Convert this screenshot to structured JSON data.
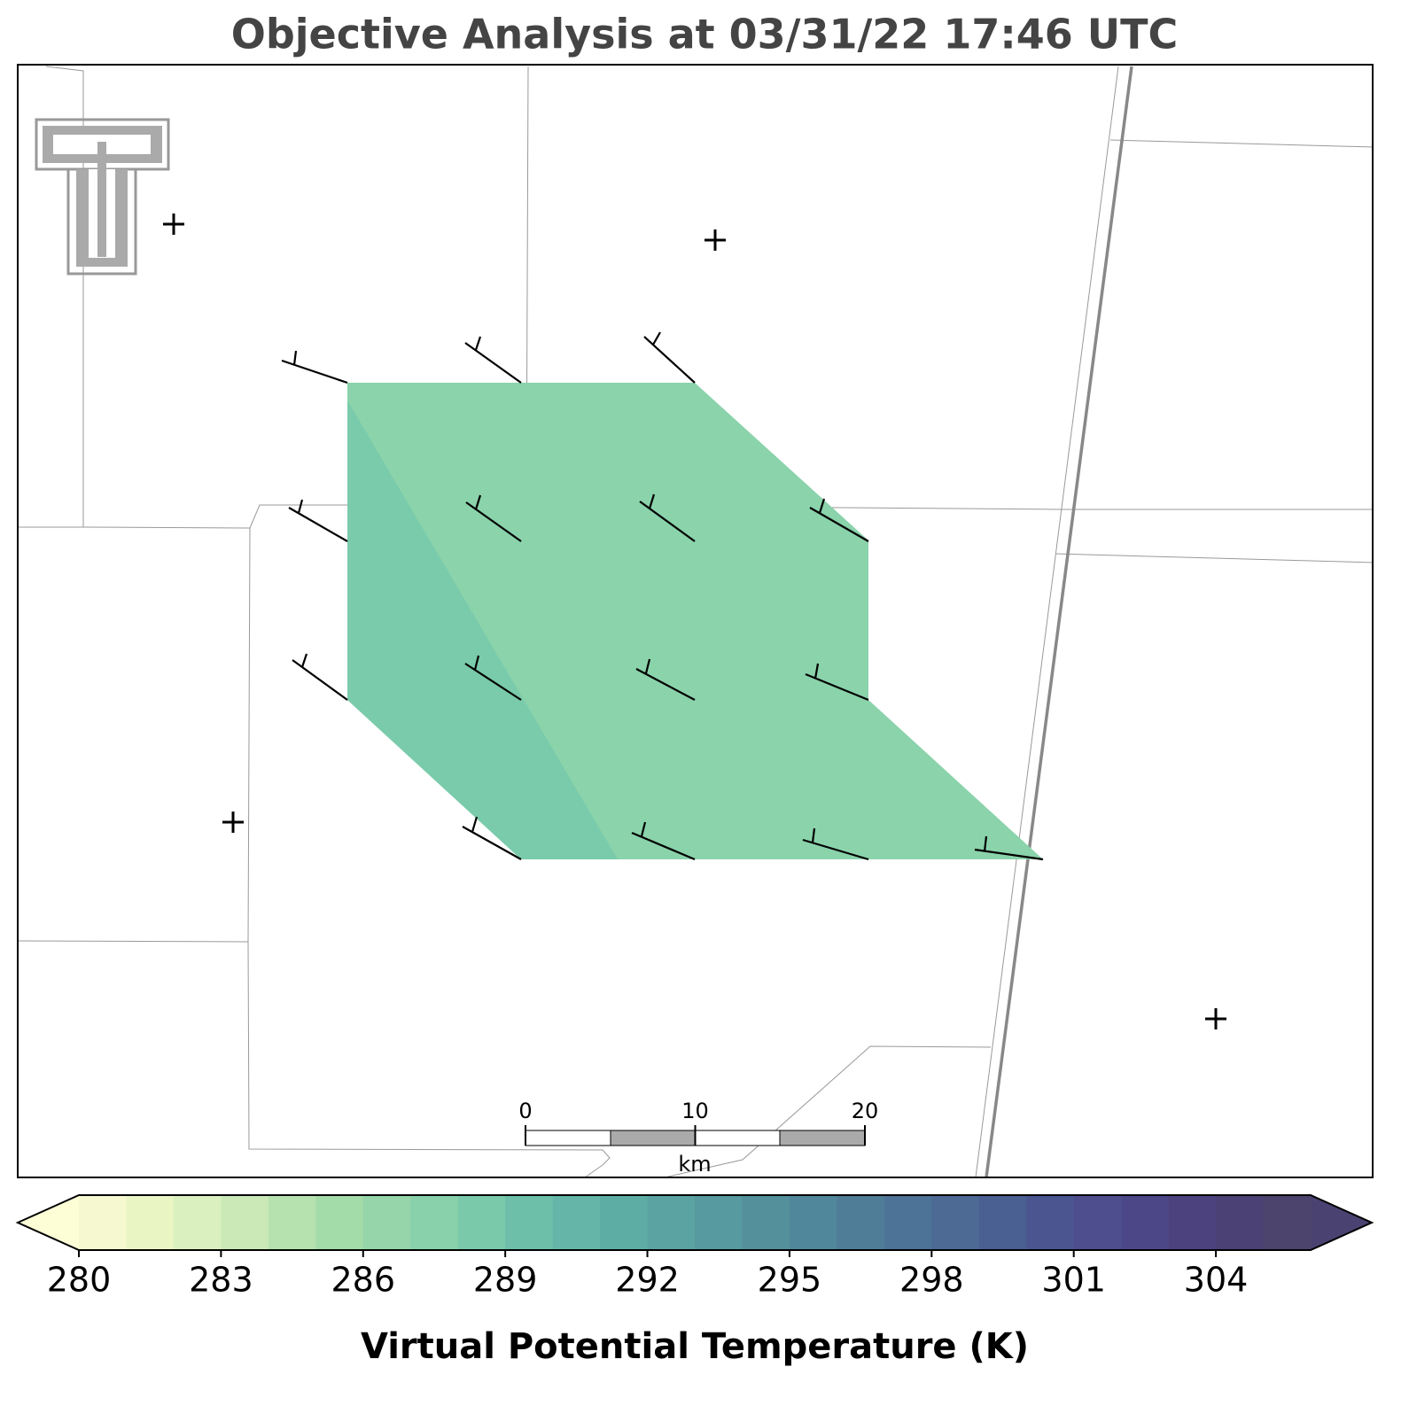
{
  "title": "Objective Analysis at 03/31/22 17:46 UTC",
  "colorbar": {
    "label": "Virtual Potential Temperature (K)",
    "boundaries": [
      280,
      281,
      282,
      283,
      284,
      285,
      286,
      287,
      288,
      289,
      290,
      291,
      292,
      293,
      294,
      295,
      296,
      297,
      298,
      299,
      300,
      301,
      302,
      303,
      304,
      305,
      306
    ],
    "colors": [
      "#f6f9cf",
      "#eaf5c4",
      "#dbf0bf",
      "#cbe9b7",
      "#b6e2b0",
      "#a3dba9",
      "#95d5a9",
      "#88d1aa",
      "#7ac9aa",
      "#6dbfaa",
      "#65b6a8",
      "#5eada5",
      "#5aa3a2",
      "#579a9f",
      "#54909c",
      "#51879a",
      "#4f7d98",
      "#4d7396",
      "#4c6a94",
      "#4b6092",
      "#4b5690",
      "#4e4e8e",
      "#4c4887",
      "#4c437e",
      "#4c4175",
      "#4d446d"
    ],
    "under_color": "#fdfed6",
    "over_color": "#4a4270",
    "ticks": [
      280,
      283,
      286,
      289,
      292,
      295,
      298,
      301,
      304
    ]
  },
  "scale_bar": {
    "ticks": [
      0,
      10,
      20
    ],
    "unit": "km"
  }
}
